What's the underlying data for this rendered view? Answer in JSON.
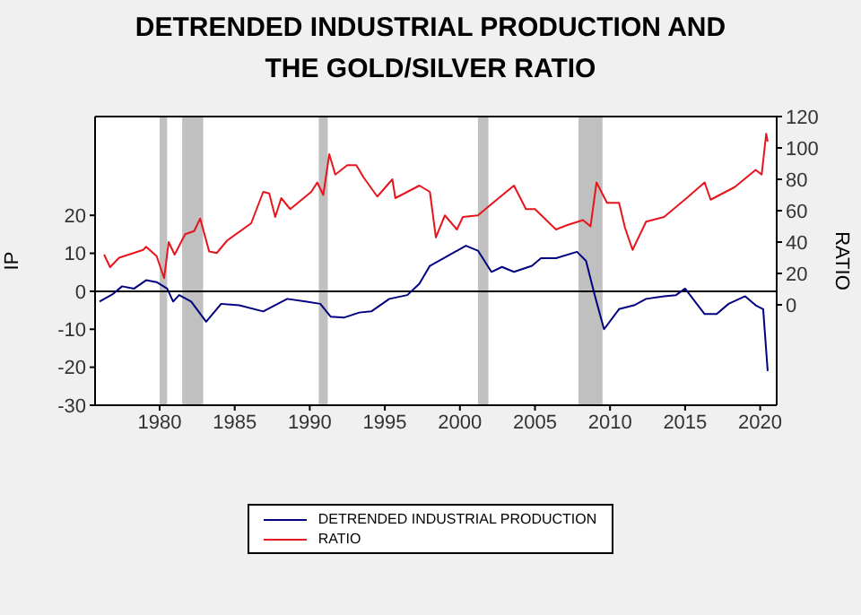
{
  "chart_data": {
    "type": "line",
    "title": "DETRENDED INDUSTRIAL PRODUCTION AND THE GOLD/SILVER RATIO",
    "ylabel": "IP",
    "y2label": "RATIO",
    "xlim": [
      1975.7,
      2021.1
    ],
    "xticks": [
      1980,
      1985,
      1990,
      1995,
      2000,
      2005,
      2010,
      2015,
      2020
    ],
    "ylim": [
      -30,
      46
    ],
    "yticks": [
      -30,
      -20,
      -10,
      0,
      10,
      20
    ],
    "y2lim": [
      -64,
      120
    ],
    "y2ticks": [
      0,
      20,
      40,
      60,
      80,
      100,
      120
    ],
    "legend": "bottom",
    "ref_lines": [
      {
        "axis": "y",
        "value": 0,
        "color": "#000000"
      }
    ],
    "bands": [
      {
        "axis": "x",
        "from": 1980,
        "to": 1980.5,
        "color": "#c0c0c0"
      },
      {
        "axis": "x",
        "from": 1981.5,
        "to": 1982.9,
        "color": "#c0c0c0"
      },
      {
        "axis": "x",
        "from": 1990.6,
        "to": 1991.2,
        "color": "#c0c0c0"
      },
      {
        "axis": "x",
        "from": 2001.2,
        "to": 2001.9,
        "color": "#c0c0c0"
      },
      {
        "axis": "x",
        "from": 2007.9,
        "to": 2009.5,
        "color": "#c0c0c0"
      }
    ],
    "series": [
      {
        "name": "DETRENDED INDUSTRIAL PRODUCTION",
        "color": "#000080",
        "x": [
          1976.0,
          1976.9,
          1977.5,
          1978.3,
          1979.1,
          1979.8,
          1980.5,
          1980.9,
          1981.3,
          1982.1,
          1983.1,
          1984.1,
          1985.3,
          1986.9,
          1988.5,
          1989.7,
          1990.7,
          1991.4,
          1992.3,
          1993.3,
          1994.1,
          1995.3,
          1996.5,
          1997.3,
          1998.0,
          1999.2,
          2000.4,
          2001.2,
          2002.1,
          2002.8,
          2003.6,
          2004.8,
          2005.4,
          2006.4,
          2007.8,
          2008.4,
          2009.0,
          2009.6,
          2010.6,
          2011.6,
          2012.4,
          2013.6,
          2014.4,
          2015.0,
          2016.3,
          2017.1,
          2017.9,
          2019.0,
          2019.7,
          2020.2,
          2020.5
        ],
        "values": [
          -2.7,
          -0.7,
          1.3,
          0.7,
          2.9,
          2.4,
          0.7,
          -2.7,
          -1,
          -2.7,
          -8,
          -3.3,
          -3.7,
          -5.3,
          -2,
          -2.7,
          -3.3,
          -6.7,
          -6.9,
          -5.6,
          -5.3,
          -2,
          -1,
          2,
          6.7,
          9.3,
          12,
          10.7,
          5.1,
          6.4,
          5.1,
          6.7,
          8.7,
          8.7,
          10.4,
          8,
          -1.3,
          -10,
          -4.7,
          -3.7,
          -2,
          -1.3,
          -1,
          0.7,
          -6,
          -6,
          -3.3,
          -1.3,
          -3.7,
          -4.7,
          -21
        ]
      },
      {
        "name": "RATIO",
        "color": "#e8141b",
        "axis": "y2",
        "x": [
          1976.3,
          1976.7,
          1977.3,
          1978.9,
          1979.1,
          1979.8,
          1980.3,
          1980.6,
          1981.0,
          1981.7,
          1982.3,
          1982.7,
          1983.3,
          1983.8,
          1984.5,
          1986.1,
          1986.9,
          1987.3,
          1987.7,
          1988.1,
          1988.7,
          1990.1,
          1990.5,
          1990.9,
          1991.3,
          1991.7,
          1992.5,
          1993.1,
          1993.6,
          1994.5,
          1995.5,
          1995.7,
          1997.3,
          1998.0,
          1998.4,
          1999.0,
          1999.8,
          2000.2,
          2001.2,
          2002.2,
          2003.6,
          2004.4,
          2005.0,
          2006.4,
          2007.2,
          2008.2,
          2008.7,
          2009.1,
          2009.8,
          2010.6,
          2011.0,
          2011.5,
          2012.4,
          2013.6,
          2015.1,
          2016.3,
          2016.7,
          2018.3,
          2019.7,
          2020.1,
          2020.4,
          2020.5
        ],
        "values": [
          32,
          24,
          30,
          35,
          37,
          31,
          17,
          40,
          32,
          45,
          47,
          55,
          34,
          33,
          41,
          52,
          72,
          71,
          56,
          68,
          61,
          72,
          78,
          70,
          96,
          83,
          89,
          89,
          81,
          69,
          80,
          68,
          76,
          72,
          43,
          57,
          48,
          56,
          57,
          65,
          76,
          61,
          61,
          48,
          51,
          54,
          50,
          78,
          65,
          65,
          49,
          35,
          53,
          56,
          68,
          78,
          67,
          75,
          86,
          83,
          109,
          104
        ]
      }
    ]
  }
}
